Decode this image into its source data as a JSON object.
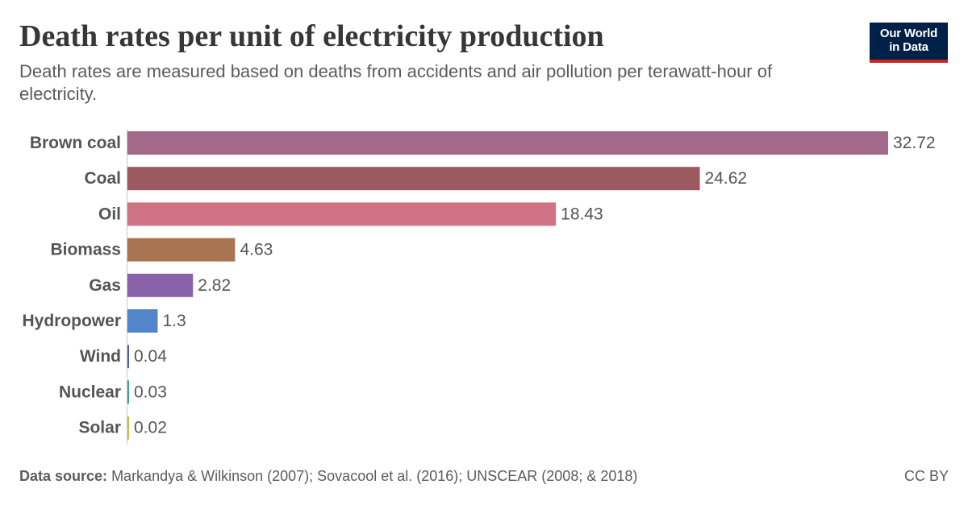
{
  "header": {
    "title": "Death rates per unit of electricity production",
    "subtitle": "Death rates are measured based on deaths from accidents and air pollution per terawatt-hour of electricity."
  },
  "logo": {
    "line1": "Our World",
    "line2": "in Data",
    "background": "#002147",
    "accent": "#ce261e"
  },
  "footer": {
    "source_label": "Data source:",
    "source_text": "Markandya & Wilkinson (2007); Sovacool et al. (2016); UNSCEAR (2008; & 2018)",
    "license": "CC BY"
  },
  "chart_data": {
    "type": "bar",
    "orientation": "horizontal",
    "title": "Death rates per unit of electricity production",
    "subtitle": "Death rates are measured based on deaths from accidents and air pollution per terawatt-hour of electricity.",
    "categories": [
      "Brown coal",
      "Coal",
      "Oil",
      "Biomass",
      "Gas",
      "Hydropower",
      "Wind",
      "Nuclear",
      "Solar"
    ],
    "values": [
      32.72,
      24.62,
      18.43,
      4.63,
      2.82,
      1.3,
      0.04,
      0.03,
      0.02
    ],
    "value_labels": [
      "32.72",
      "24.62",
      "18.43",
      "4.63",
      "2.82",
      "1.3",
      "0.04",
      "0.03",
      "0.02"
    ],
    "colors": [
      "#a2698a",
      "#9c5a60",
      "#cf7283",
      "#a97452",
      "#8a62aa",
      "#5385cb",
      "#4e5dab",
      "#3fa19a",
      "#d9b54a"
    ],
    "xlim": [
      0,
      32.72
    ],
    "grid": false,
    "legend": "none"
  }
}
